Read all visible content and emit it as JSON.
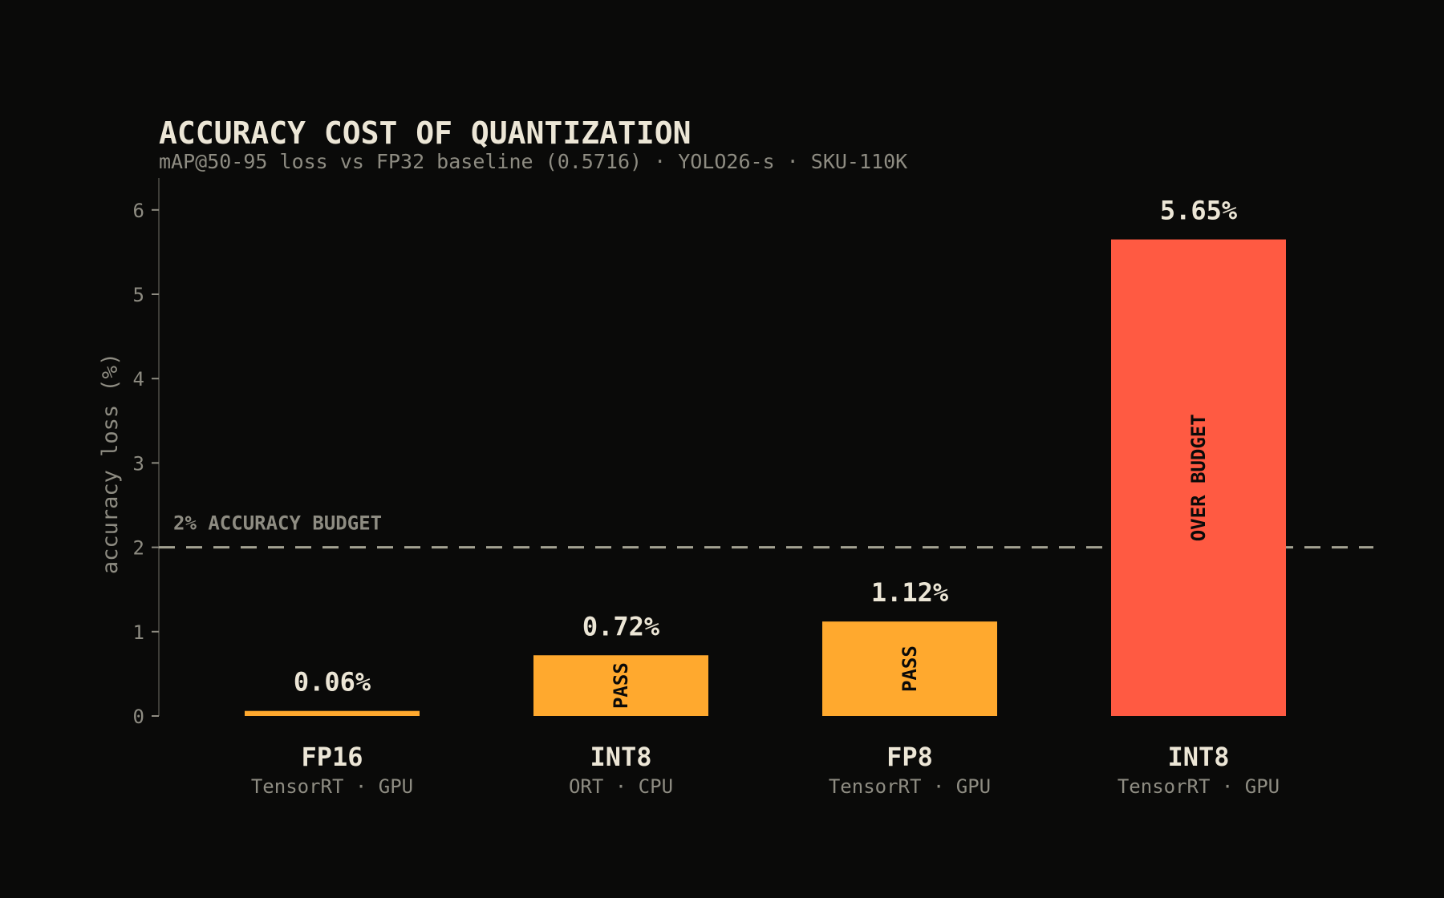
{
  "chart_data": {
    "type": "bar",
    "title": "ACCURACY COST OF QUANTIZATION",
    "subtitle": "mAP@50-95 loss vs FP32 baseline (0.5716) · YOLO26-s · SKU-110K",
    "ylabel": "accuracy loss (%)",
    "ylim": [
      0,
      6.4
    ],
    "yticks": [
      "0",
      "1",
      "2",
      "3",
      "4",
      "5",
      "6"
    ],
    "grid": false,
    "categories": [
      {
        "name": "FP16",
        "sub": "TensorRT · GPU"
      },
      {
        "name": "INT8",
        "sub": "ORT · CPU"
      },
      {
        "name": "FP8",
        "sub": "TensorRT · GPU"
      },
      {
        "name": "INT8",
        "sub": "TensorRT · GPU"
      }
    ],
    "values": [
      0.06,
      0.72,
      1.12,
      5.65
    ],
    "value_labels": [
      "0.06%",
      "0.72%",
      "1.12%",
      "5.65%"
    ],
    "status_labels": [
      "",
      "PASS",
      "PASS",
      "OVER BUDGET"
    ],
    "threshold": {
      "value": 2,
      "label": "2% ACCURACY BUDGET"
    },
    "colors": {
      "pass": "#ffa92e",
      "over": "#ff5a42",
      "budget_line": "#a4a292",
      "axis": "#3e3d38"
    }
  }
}
